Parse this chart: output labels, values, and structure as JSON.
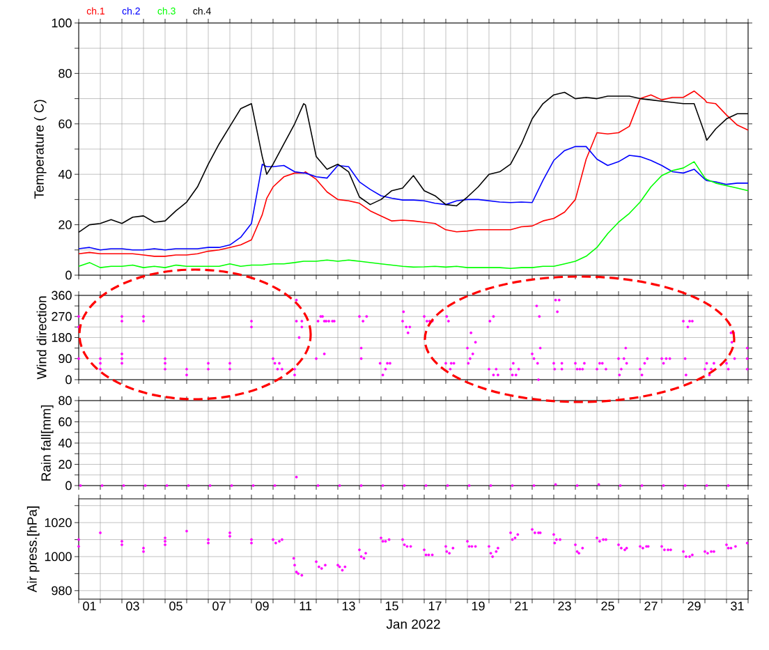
{
  "chart_data": [
    {
      "type": "line",
      "ylabel": "Temperature ( C)",
      "legend": "top left",
      "grid": true,
      "tick_labels": "y",
      "xlim": [
        "2022-01-01T00:00",
        "2022-02-01T00:00"
      ],
      "xticks": [
        {
          "value": "2022-01-01T00:00",
          "label": null
        },
        {
          "value": "2022-01-02T00:00",
          "label": null
        },
        {
          "value": "2022-01-03T00:00",
          "label": null
        },
        {
          "value": "2022-01-04T00:00",
          "label": null
        },
        {
          "value": "2022-01-05T00:00",
          "label": null
        },
        {
          "value": "2022-01-06T00:00",
          "label": null
        },
        {
          "value": "2022-01-07T00:00",
          "label": null
        },
        {
          "value": "2022-01-08T00:00",
          "label": null
        },
        {
          "value": "2022-01-09T00:00",
          "label": null
        },
        {
          "value": "2022-01-10T00:00",
          "label": null
        },
        {
          "value": "2022-01-11T00:00",
          "label": null
        },
        {
          "value": "2022-01-12T00:00",
          "label": null
        },
        {
          "value": "2022-01-13T00:00",
          "label": null
        },
        {
          "value": "2022-01-14T00:00",
          "label": null
        },
        {
          "value": "2022-01-15T00:00",
          "label": null
        },
        {
          "value": "2022-01-16T00:00",
          "label": null
        },
        {
          "value": "2022-01-17T00:00",
          "label": null
        },
        {
          "value": "2022-01-18T00:00",
          "label": null
        },
        {
          "value": "2022-01-19T00:00",
          "label": null
        },
        {
          "value": "2022-01-20T00:00",
          "label": null
        },
        {
          "value": "2022-01-21T00:00",
          "label": null
        },
        {
          "value": "2022-01-22T00:00",
          "label": null
        },
        {
          "value": "2022-01-23T00:00",
          "label": null
        },
        {
          "value": "2022-01-24T00:00",
          "label": null
        },
        {
          "value": "2022-01-25T00:00",
          "label": null
        },
        {
          "value": "2022-01-26T00:00",
          "label": null
        },
        {
          "value": "2022-01-27T00:00",
          "label": null
        },
        {
          "value": "2022-01-28T00:00",
          "label": null
        },
        {
          "value": "2022-01-29T00:00",
          "label": null
        },
        {
          "value": "2022-01-30T00:00",
          "label": null
        },
        {
          "value": "2022-01-31T00:00",
          "label": null
        },
        {
          "value": "2022-02-01T00:00",
          "label": null
        }
      ],
      "ylim": [
        0,
        100
      ],
      "yticks": [
        0,
        {
          "value": 10,
          "label": null
        },
        20,
        {
          "value": 30,
          "label": null
        },
        40,
        {
          "value": 50,
          "label": null
        },
        60,
        {
          "value": 70,
          "label": null
        },
        80,
        {
          "value": 90,
          "label": null
        },
        100
      ],
      "x": [
        "2022-01-01T00:00",
        "2022-01-01T12:00",
        "2022-01-02T00:00",
        "2022-01-02T12:00",
        "2022-01-03T00:00",
        "2022-01-03T12:00",
        "2022-01-04T00:00",
        "2022-01-04T12:00",
        "2022-01-05T00:00",
        "2022-01-05T12:00",
        "2022-01-06T00:00",
        "2022-01-06T12:00",
        "2022-01-07T00:00",
        "2022-01-07T12:00",
        "2022-01-08T00:00",
        "2022-01-08T12:00",
        "2022-01-09T00:00",
        "2022-01-09T12:00",
        "2022-01-09T17:00",
        "2022-01-10T00:00",
        "2022-01-10T12:00",
        "2022-01-11T00:00",
        "2022-01-11T10:00",
        "2022-01-11T12:00",
        "2022-01-12T00:00",
        "2022-01-12T12:00",
        "2022-01-13T00:00",
        "2022-01-13T12:00",
        "2022-01-14T00:00",
        "2022-01-14T12:00",
        "2022-01-15T00:00",
        "2022-01-15T12:00",
        "2022-01-16T00:00",
        "2022-01-16T12:00",
        "2022-01-17T00:00",
        "2022-01-17T12:00",
        "2022-01-18T00:00",
        "2022-01-18T12:00",
        "2022-01-19T00:00",
        "2022-01-19T12:00",
        "2022-01-20T00:00",
        "2022-01-20T12:00",
        "2022-01-21T00:00",
        "2022-01-21T12:00",
        "2022-01-22T00:00",
        "2022-01-22T12:00",
        "2022-01-23T00:00",
        "2022-01-23T12:00",
        "2022-01-24T00:00",
        "2022-01-24T12:00",
        "2022-01-25T00:00",
        "2022-01-25T12:00",
        "2022-01-26T00:00",
        "2022-01-26T12:00",
        "2022-01-27T00:00",
        "2022-01-27T12:00",
        "2022-01-28T00:00",
        "2022-01-28T12:00",
        "2022-01-29T00:00",
        "2022-01-29T12:00",
        "2022-01-30T00:00",
        "2022-01-30T02:00",
        "2022-01-30T12:00",
        "2022-01-31T00:00",
        "2022-01-31T12:00",
        "2022-02-01T00:00"
      ],
      "series": [
        {
          "name": "ch.1",
          "color": "#ff0000",
          "values": [
            8.5,
            9,
            8.5,
            8.5,
            8.5,
            8.5,
            8,
            7.5,
            7.5,
            8,
            8,
            8.5,
            9.5,
            10,
            11,
            12,
            14,
            24,
            30.5,
            35,
            39,
            40.5,
            40.5,
            41,
            38,
            33,
            30,
            29.5,
            28.5,
            25.5,
            23.5,
            21.5,
            21.8,
            21.5,
            21,
            20.5,
            18,
            17.2,
            17.5,
            18,
            18,
            18,
            18,
            19.2,
            19.5,
            21.5,
            22.5,
            25,
            30,
            46,
            56.5,
            56,
            56.5,
            59,
            70,
            71.5,
            69.5,
            70.5,
            70.5,
            73,
            69.5,
            68.5,
            68,
            63.5,
            59.5,
            57.5
          ]
        },
        {
          "name": "ch.2",
          "color": "#0000ff",
          "values": [
            10.5,
            11,
            10,
            10.5,
            10.5,
            10,
            10,
            10.5,
            10,
            10.5,
            10.5,
            10.5,
            11,
            11,
            12,
            15,
            20.5,
            44,
            43,
            43,
            43.5,
            41,
            40.5,
            40.5,
            39,
            38.5,
            43.5,
            43,
            37,
            34,
            31.5,
            30.5,
            29.8,
            29.8,
            29.5,
            28.5,
            28,
            29.5,
            30,
            30,
            29.5,
            29,
            28.8,
            29,
            28.8,
            37.6,
            45.5,
            49.4,
            51,
            51,
            46,
            43.5,
            45,
            47.5,
            47,
            45.5,
            43.5,
            41,
            40.5,
            42,
            38,
            37.5,
            37,
            36,
            36.5,
            36.5
          ]
        },
        {
          "name": "ch.3",
          "color": "#00ff00",
          "values": [
            3.5,
            5,
            3,
            3.5,
            3.5,
            4,
            3,
            3.5,
            3,
            4,
            3.5,
            3.5,
            3.5,
            3.5,
            4.5,
            3.5,
            4,
            4,
            4.2,
            4.5,
            4.5,
            5,
            5.5,
            5.5,
            5.5,
            6,
            5.5,
            6,
            5.5,
            5,
            4.5,
            4,
            3.5,
            3.2,
            3.3,
            3.5,
            3.2,
            3.5,
            3,
            3,
            3,
            3,
            2.7,
            3,
            3,
            3.5,
            3.5,
            4.5,
            5.5,
            7.5,
            11,
            16.5,
            21,
            24.5,
            29,
            35,
            39.5,
            41.5,
            42.5,
            45,
            38.5,
            38,
            36.5,
            35.5,
            34.5,
            33.5
          ]
        },
        {
          "name": "ch.4",
          "color": "#000000",
          "values": [
            17,
            20,
            20.5,
            22,
            20.5,
            23,
            23.5,
            21,
            21.5,
            25.5,
            29,
            35,
            44,
            52,
            59,
            66,
            68,
            47,
            40,
            44,
            52,
            60,
            68,
            67.5,
            47,
            42,
            44,
            41,
            31,
            28,
            30,
            33.5,
            34.5,
            39.5,
            33.5,
            31.5,
            28,
            27.5,
            31,
            35,
            40,
            41,
            44,
            52,
            62,
            68,
            71.5,
            72.5,
            70,
            70.5,
            70,
            71,
            71,
            71,
            70,
            69.5,
            69,
            68.5,
            68,
            68,
            56,
            53.5,
            58,
            62,
            64,
            64
          ]
        }
      ]
    },
    {
      "type": "scatter",
      "ylabel": "Wind direction",
      "grid": true,
      "tick_labels": "y",
      "marker": "circle",
      "xlim": [
        "2022-01-01T00:00",
        "2022-02-01T00:00"
      ],
      "xticks": [
        {
          "value": "2022-01-01T00:00",
          "label": null
        },
        {
          "value": "2022-01-02T00:00",
          "label": null
        },
        {
          "value": "2022-01-03T00:00",
          "label": null
        },
        {
          "value": "2022-01-04T00:00",
          "label": null
        },
        {
          "value": "2022-01-05T00:00",
          "label": null
        },
        {
          "value": "2022-01-06T00:00",
          "label": null
        },
        {
          "value": "2022-01-07T00:00",
          "label": null
        },
        {
          "value": "2022-01-08T00:00",
          "label": null
        },
        {
          "value": "2022-01-09T00:00",
          "label": null
        },
        {
          "value": "2022-01-10T00:00",
          "label": null
        },
        {
          "value": "2022-01-11T00:00",
          "label": null
        },
        {
          "value": "2022-01-12T00:00",
          "label": null
        },
        {
          "value": "2022-01-13T00:00",
          "label": null
        },
        {
          "value": "2022-01-14T00:00",
          "label": null
        },
        {
          "value": "2022-01-15T00:00",
          "label": null
        },
        {
          "value": "2022-01-16T00:00",
          "label": null
        },
        {
          "value": "2022-01-17T00:00",
          "label": null
        },
        {
          "value": "2022-01-18T00:00",
          "label": null
        },
        {
          "value": "2022-01-19T00:00",
          "label": null
        },
        {
          "value": "2022-01-20T00:00",
          "label": null
        },
        {
          "value": "2022-01-21T00:00",
          "label": null
        },
        {
          "value": "2022-01-22T00:00",
          "label": null
        },
        {
          "value": "2022-01-23T00:00",
          "label": null
        },
        {
          "value": "2022-01-24T00:00",
          "label": null
        },
        {
          "value": "2022-01-25T00:00",
          "label": null
        },
        {
          "value": "2022-01-26T00:00",
          "label": null
        },
        {
          "value": "2022-01-27T00:00",
          "label": null
        },
        {
          "value": "2022-01-28T00:00",
          "label": null
        },
        {
          "value": "2022-01-29T00:00",
          "label": null
        },
        {
          "value": "2022-01-30T00:00",
          "label": null
        },
        {
          "value": "2022-01-31T00:00",
          "label": null
        },
        {
          "value": "2022-02-01T00:00",
          "label": null
        }
      ],
      "ylim": [
        0,
        360
      ],
      "yticks": [
        0,
        {
          "value": 45,
          "label": null
        },
        90,
        {
          "value": 135,
          "label": null
        },
        180,
        {
          "value": 225,
          "label": null
        },
        270,
        {
          "value": 315,
          "label": null
        },
        360
      ],
      "series": [
        {
          "color": "#ff00ff",
          "x": [
            "2022-01-01T00:00",
            "2022-01-01T00:00",
            "2022-01-01T00:00",
            "2022-01-02T00:00",
            "2022-01-02T00:00",
            "2022-01-02T00:00",
            "2022-01-03T00:00",
            "2022-01-03T00:00",
            "2022-01-03T00:00",
            "2022-01-03T00:00",
            "2022-01-03T00:00",
            "2022-01-04T00:00",
            "2022-01-04T00:00",
            "2022-01-05T00:00",
            "2022-01-05T00:00",
            "2022-01-05T00:00",
            "2022-01-06T00:00",
            "2022-01-06T00:00",
            "2022-01-07T00:00",
            "2022-01-07T00:00",
            "2022-01-08T00:00",
            "2022-01-08T00:00",
            "2022-01-09T00:00",
            "2022-01-09T00:00",
            "2022-01-10T00:00",
            "2022-01-10T02:00",
            "2022-01-10T05:00",
            "2022-01-10T07:00",
            "2022-01-10T10:00",
            "2022-01-11T00:00",
            "2022-01-11T00:00",
            "2022-01-11T02:00",
            "2022-01-11T02:00",
            "2022-01-11T05:00",
            "2022-01-11T08:00",
            "2022-01-11T08:00",
            "2022-01-12T00:00",
            "2022-01-12T02:00",
            "2022-01-12T05:00",
            "2022-01-12T07:00",
            "2022-01-12T09:00",
            "2022-01-12T09:00",
            "2022-01-12T11:00",
            "2022-01-12T14:00",
            "2022-01-12T18:00",
            "2022-01-12T20:00",
            "2022-01-14T00:00",
            "2022-01-14T02:00",
            "2022-01-14T02:00",
            "2022-01-14T04:00",
            "2022-01-14T08:00",
            "2022-01-14T23:00",
            "2022-01-15T02:00",
            "2022-01-15T05:00",
            "2022-01-15T07:00",
            "2022-01-15T10:00",
            "2022-01-16T00:00",
            "2022-01-16T01:00",
            "2022-01-16T04:00",
            "2022-01-16T06:00",
            "2022-01-16T08:00",
            "2022-01-17T00:00",
            "2022-01-17T03:00",
            "2022-01-17T06:00",
            "2022-01-17T09:00",
            "2022-01-18T00:00",
            "2022-01-18T01:00",
            "2022-01-18T03:00",
            "2022-01-18T05:00",
            "2022-01-18T06:00",
            "2022-01-18T09:00",
            "2022-01-19T00:00",
            "2022-01-19T01:00",
            "2022-01-19T03:00",
            "2022-01-19T04:00",
            "2022-01-19T06:00",
            "2022-01-19T09:00",
            "2022-01-20T00:00",
            "2022-01-20T01:00",
            "2022-01-20T05:00",
            "2022-01-20T05:00",
            "2022-01-20T08:00",
            "2022-01-20T10:00",
            "2022-01-21T00:00",
            "2022-01-21T02:00",
            "2022-01-21T03:00",
            "2022-01-21T06:00",
            "2022-01-21T09:00",
            "2022-01-22T00:00",
            "2022-01-22T02:00",
            "2022-01-22T05:00",
            "2022-01-22T06:00",
            "2022-01-22T07:00",
            "2022-01-22T08:00",
            "2022-01-22T09:00",
            "2022-01-23T00:00",
            "2022-01-23T01:00",
            "2022-01-23T02:00",
            "2022-01-23T04:00",
            "2022-01-23T06:00",
            "2022-01-23T09:00",
            "2022-01-23T09:00",
            "2022-01-24T00:00",
            "2022-01-24T02:00",
            "2022-01-24T05:00",
            "2022-01-24T08:00",
            "2022-01-24T10:00",
            "2022-01-25T00:00",
            "2022-01-25T03:00",
            "2022-01-25T06:00",
            "2022-01-25T10:00",
            "2022-01-26T00:00",
            "2022-01-26T01:00",
            "2022-01-26T03:00",
            "2022-01-26T06:00",
            "2022-01-26T08:00",
            "2022-01-26T09:00",
            "2022-01-27T00:00",
            "2022-01-27T02:00",
            "2022-01-27T05:00",
            "2022-01-27T08:00",
            "2022-01-28T00:00",
            "2022-01-28T02:00",
            "2022-01-28T05:00",
            "2022-01-28T09:00",
            "2022-01-29T00:00",
            "2022-01-29T02:00",
            "2022-01-29T03:00",
            "2022-01-29T05:00",
            "2022-01-29T07:00",
            "2022-01-29T10:00",
            "2022-01-30T00:00",
            "2022-01-30T02:00",
            "2022-01-30T05:00",
            "2022-01-30T07:00",
            "2022-01-30T10:00",
            "2022-01-31T00:00",
            "2022-01-31T02:00",
            "2022-01-31T05:00",
            "2022-01-31T06:00",
            "2022-01-31T08:00",
            "2022-01-31T09:00",
            "2022-01-31T23:00",
            "2022-01-31T23:00",
            "2022-01-31T23:00"
          ],
          "values": [
            270,
            225,
            90,
            90,
            70,
            45,
            270,
            250,
            110,
            90,
            70,
            270,
            250,
            90,
            70,
            45,
            45,
            20,
            70,
            45,
            70,
            45,
            250,
            225,
            90,
            70,
            45,
            70,
            45,
            45,
            20,
            340,
            250,
            180,
            250,
            225,
            90,
            250,
            270,
            270,
            110,
            250,
            250,
            250,
            250,
            250,
            270,
            135,
            90,
            250,
            270,
            70,
            20,
            45,
            70,
            70,
            250,
            290,
            225,
            200,
            225,
            270,
            250,
            250,
            250,
            70,
            270,
            250,
            45,
            70,
            70,
            135,
            70,
            90,
            200,
            110,
            160,
            45,
            250,
            270,
            20,
            45,
            20,
            45,
            20,
            70,
            20,
            45,
            110,
            90,
            315,
            70,
            0,
            270,
            135,
            70,
            45,
            340,
            290,
            340,
            70,
            45,
            70,
            45,
            45,
            45,
            70,
            45,
            70,
            70,
            45,
            90,
            20,
            45,
            90,
            135,
            70,
            45,
            20,
            70,
            90,
            90,
            70,
            90,
            90,
            250,
            90,
            20,
            225,
            250,
            250,
            45,
            70,
            20,
            45,
            70,
            70,
            45,
            200,
            160,
            200,
            90,
            135,
            90,
            45
          ]
        }
      ]
    },
    {
      "type": "scatter",
      "ylabel": "Rain fall[mm]",
      "grid": true,
      "tick_labels": "y",
      "marker": "circle",
      "xlim": [
        "2022-01-01T00:00",
        "2022-02-01T00:00"
      ],
      "xticks": [
        {
          "value": "2022-01-01T00:00",
          "label": null
        },
        {
          "value": "2022-01-02T00:00",
          "label": null
        },
        {
          "value": "2022-01-03T00:00",
          "label": null
        },
        {
          "value": "2022-01-04T00:00",
          "label": null
        },
        {
          "value": "2022-01-05T00:00",
          "label": null
        },
        {
          "value": "2022-01-06T00:00",
          "label": null
        },
        {
          "value": "2022-01-07T00:00",
          "label": null
        },
        {
          "value": "2022-01-08T00:00",
          "label": null
        },
        {
          "value": "2022-01-09T00:00",
          "label": null
        },
        {
          "value": "2022-01-10T00:00",
          "label": null
        },
        {
          "value": "2022-01-11T00:00",
          "label": null
        },
        {
          "value": "2022-01-12T00:00",
          "label": null
        },
        {
          "value": "2022-01-13T00:00",
          "label": null
        },
        {
          "value": "2022-01-14T00:00",
          "label": null
        },
        {
          "value": "2022-01-15T00:00",
          "label": null
        },
        {
          "value": "2022-01-16T00:00",
          "label": null
        },
        {
          "value": "2022-01-17T00:00",
          "label": null
        },
        {
          "value": "2022-01-18T00:00",
          "label": null
        },
        {
          "value": "2022-01-19T00:00",
          "label": null
        },
        {
          "value": "2022-01-20T00:00",
          "label": null
        },
        {
          "value": "2022-01-21T00:00",
          "label": null
        },
        {
          "value": "2022-01-22T00:00",
          "label": null
        },
        {
          "value": "2022-01-23T00:00",
          "label": null
        },
        {
          "value": "2022-01-24T00:00",
          "label": null
        },
        {
          "value": "2022-01-25T00:00",
          "label": null
        },
        {
          "value": "2022-01-26T00:00",
          "label": null
        },
        {
          "value": "2022-01-27T00:00",
          "label": null
        },
        {
          "value": "2022-01-28T00:00",
          "label": null
        },
        {
          "value": "2022-01-29T00:00",
          "label": null
        },
        {
          "value": "2022-01-30T00:00",
          "label": null
        },
        {
          "value": "2022-01-31T00:00",
          "label": null
        },
        {
          "value": "2022-02-01T00:00",
          "label": null
        }
      ],
      "ylim": [
        0,
        80
      ],
      "yticks": [
        0,
        {
          "value": 10,
          "label": null
        },
        20,
        {
          "value": 30,
          "label": null
        },
        40,
        {
          "value": 50,
          "label": null
        },
        60,
        {
          "value": 70,
          "label": null
        },
        80
      ],
      "series": [
        {
          "color": "#ff00ff",
          "x": [
            "2022-01-01T02:00",
            "2022-01-02T02:00",
            "2022-01-03T02:00",
            "2022-01-04T02:00",
            "2022-01-05T02:00",
            "2022-01-06T02:00",
            "2022-01-07T02:00",
            "2022-01-08T02:00",
            "2022-01-09T02:00",
            "2022-01-10T02:00",
            "2022-01-11T02:00",
            "2022-01-12T02:00",
            "2022-01-13T02:00",
            "2022-01-14T02:00",
            "2022-01-15T02:00",
            "2022-01-16T02:00",
            "2022-01-17T02:00",
            "2022-01-18T02:00",
            "2022-01-19T02:00",
            "2022-01-20T02:00",
            "2022-01-21T02:00",
            "2022-01-22T02:00",
            "2022-01-23T02:00",
            "2022-01-24T02:00",
            "2022-01-25T02:00",
            "2022-01-26T02:00",
            "2022-01-27T02:00",
            "2022-01-28T02:00",
            "2022-01-29T02:00",
            "2022-01-30T02:00",
            "2022-01-31T02:00"
          ],
          "values": [
            0,
            0,
            0,
            0,
            0,
            0,
            0,
            0,
            0,
            0,
            8,
            0,
            0,
            0,
            0,
            0,
            0,
            0,
            0,
            0,
            0,
            0,
            1,
            0,
            1,
            0,
            0,
            0,
            0,
            0,
            0
          ]
        }
      ]
    },
    {
      "type": "scatter",
      "ylabel": "Air press.[hPa]",
      "xlabel": "Jan 2022",
      "grid": true,
      "marker": "circle",
      "xlim": [
        "2022-01-01T00:00",
        "2022-02-01T00:00"
      ],
      "xticks": [
        {
          "value": "2022-01-01T00:00",
          "label": null
        },
        {
          "value": "2022-01-02T00:00",
          "label": null
        },
        {
          "value": "2022-01-03T00:00",
          "label": null
        },
        {
          "value": "2022-01-04T00:00",
          "label": null
        },
        {
          "value": "2022-01-05T00:00",
          "label": null
        },
        {
          "value": "2022-01-06T00:00",
          "label": null
        },
        {
          "value": "2022-01-07T00:00",
          "label": null
        },
        {
          "value": "2022-01-08T00:00",
          "label": null
        },
        {
          "value": "2022-01-09T00:00",
          "label": null
        },
        {
          "value": "2022-01-10T00:00",
          "label": null
        },
        {
          "value": "2022-01-11T00:00",
          "label": null
        },
        {
          "value": "2022-01-12T00:00",
          "label": null
        },
        {
          "value": "2022-01-13T00:00",
          "label": null
        },
        {
          "value": "2022-01-14T00:00",
          "label": null
        },
        {
          "value": "2022-01-15T00:00",
          "label": null
        },
        {
          "value": "2022-01-16T00:00",
          "label": null
        },
        {
          "value": "2022-01-17T00:00",
          "label": null
        },
        {
          "value": "2022-01-18T00:00",
          "label": null
        },
        {
          "value": "2022-01-19T00:00",
          "label": null
        },
        {
          "value": "2022-01-20T00:00",
          "label": null
        },
        {
          "value": "2022-01-21T00:00",
          "label": null
        },
        {
          "value": "2022-01-22T00:00",
          "label": null
        },
        {
          "value": "2022-01-23T00:00",
          "label": null
        },
        {
          "value": "2022-01-24T00:00",
          "label": null
        },
        {
          "value": "2022-01-25T00:00",
          "label": null
        },
        {
          "value": "2022-01-26T00:00",
          "label": null
        },
        {
          "value": "2022-01-27T00:00",
          "label": null
        },
        {
          "value": "2022-01-28T00:00",
          "label": null
        },
        {
          "value": "2022-01-29T00:00",
          "label": null
        },
        {
          "value": "2022-01-30T00:00",
          "label": null
        },
        {
          "value": "2022-01-31T00:00",
          "label": null
        },
        {
          "value": "2022-02-01T00:00",
          "label": null
        },
        {
          "value": "2022-01-01T12:00",
          "label": "01"
        },
        {
          "value": "2022-01-03T12:00",
          "label": "03"
        },
        {
          "value": "2022-01-05T12:00",
          "label": "05"
        },
        {
          "value": "2022-01-07T12:00",
          "label": "07"
        },
        {
          "value": "2022-01-09T12:00",
          "label": "09"
        },
        {
          "value": "2022-01-11T12:00",
          "label": "11"
        },
        {
          "value": "2022-01-13T12:00",
          "label": "13"
        },
        {
          "value": "2022-01-15T12:00",
          "label": "15"
        },
        {
          "value": "2022-01-17T12:00",
          "label": "17"
        },
        {
          "value": "2022-01-19T12:00",
          "label": "19"
        },
        {
          "value": "2022-01-21T12:00",
          "label": "21"
        },
        {
          "value": "2022-01-23T12:00",
          "label": "23"
        },
        {
          "value": "2022-01-25T12:00",
          "label": "25"
        },
        {
          "value": "2022-01-27T12:00",
          "label": "27"
        },
        {
          "value": "2022-01-29T12:00",
          "label": "29"
        },
        {
          "value": "2022-01-31T12:00",
          "label": "31"
        }
      ],
      "ylim": [
        975,
        1034
      ],
      "yticks": [
        980,
        {
          "value": 990,
          "label": null
        },
        1000,
        {
          "value": 1010,
          "label": null
        },
        1020,
        {
          "value": 1030,
          "label": null
        }
      ],
      "series": [
        {
          "color": "#ff00ff",
          "x": [
            "2022-01-01T00:00",
            "2022-01-01T00:00",
            "2022-01-02T00:00",
            "2022-01-03T00:00",
            "2022-01-03T00:00",
            "2022-01-04T00:00",
            "2022-01-04T00:00",
            "2022-01-05T00:00",
            "2022-01-05T00:00",
            "2022-01-05T00:00",
            "2022-01-06T00:00",
            "2022-01-07T00:00",
            "2022-01-07T00:00",
            "2022-01-08T00:00",
            "2022-01-08T00:00",
            "2022-01-09T00:00",
            "2022-01-09T00:00",
            "2022-01-10T00:00",
            "2022-01-10T03:00",
            "2022-01-10T07:00",
            "2022-01-10T10:00",
            "2022-01-10T23:00",
            "2022-01-11T00:00",
            "2022-01-11T02:00",
            "2022-01-11T04:00",
            "2022-01-11T08:00",
            "2022-01-12T00:00",
            "2022-01-12T03:00",
            "2022-01-12T06:00",
            "2022-01-12T10:00",
            "2022-01-13T00:00",
            "2022-01-13T02:00",
            "2022-01-13T05:00",
            "2022-01-13T08:00",
            "2022-01-14T00:00",
            "2022-01-14T02:00",
            "2022-01-14T05:00",
            "2022-01-14T07:00",
            "2022-01-15T00:00",
            "2022-01-15T02:00",
            "2022-01-15T05:00",
            "2022-01-15T09:00",
            "2022-01-16T00:00",
            "2022-01-16T02:00",
            "2022-01-16T05:00",
            "2022-01-16T09:00",
            "2022-01-17T00:00",
            "2022-01-17T02:00",
            "2022-01-17T05:00",
            "2022-01-17T09:00",
            "2022-01-18T00:00",
            "2022-01-18T01:00",
            "2022-01-18T04:00",
            "2022-01-18T08:00",
            "2022-01-19T00:00",
            "2022-01-19T02:00",
            "2022-01-19T05:00",
            "2022-01-19T09:00",
            "2022-01-20T00:00",
            "2022-01-20T02:00",
            "2022-01-20T04:00",
            "2022-01-20T08:00",
            "2022-01-20T10:00",
            "2022-01-21T00:00",
            "2022-01-21T02:00",
            "2022-01-21T05:00",
            "2022-01-21T08:00",
            "2022-01-22T00:00",
            "2022-01-22T03:00",
            "2022-01-22T07:00",
            "2022-01-22T09:00",
            "2022-01-23T00:00",
            "2022-01-23T01:00",
            "2022-01-23T03:00",
            "2022-01-23T07:00",
            "2022-01-24T00:00",
            "2022-01-24T02:00",
            "2022-01-24T04:00",
            "2022-01-24T08:00",
            "2022-01-25T00:00",
            "2022-01-25T03:00",
            "2022-01-25T07:00",
            "2022-01-25T10:00",
            "2022-01-26T00:00",
            "2022-01-26T03:00",
            "2022-01-26T07:00",
            "2022-01-26T09:00",
            "2022-01-27T00:00",
            "2022-01-27T03:00",
            "2022-01-27T07:00",
            "2022-01-27T09:00",
            "2022-01-28T00:00",
            "2022-01-28T03:00",
            "2022-01-28T07:00",
            "2022-01-28T10:00",
            "2022-01-29T00:00",
            "2022-01-29T03:00",
            "2022-01-29T07:00",
            "2022-01-29T10:00",
            "2022-01-30T00:00",
            "2022-01-30T03:00",
            "2022-01-30T07:00",
            "2022-01-30T10:00",
            "2022-01-31T00:00",
            "2022-01-31T02:00",
            "2022-01-31T05:00",
            "2022-01-31T10:00",
            "2022-01-31T23:00"
          ],
          "values": [
            1010,
            1006,
            1014,
            1009,
            1007,
            1005,
            1003,
            1011,
            1009,
            1007,
            1015,
            1010,
            1008,
            1014,
            1012,
            1010,
            1008,
            1010,
            1008,
            1009,
            1010,
            999,
            995,
            991,
            990,
            989,
            997,
            994,
            993,
            995,
            995,
            994,
            992,
            994,
            1004,
            1000,
            999,
            1002,
            1011,
            1009,
            1009,
            1010,
            1010,
            1007,
            1006,
            1006,
            1004,
            1001,
            1001,
            1001,
            1006,
            1003,
            1002,
            1005,
            1009,
            1006,
            1006,
            1006,
            1006,
            1002,
            1000,
            1003,
            1005,
            1014,
            1010,
            1011,
            1013,
            1016,
            1014,
            1014,
            1014,
            1013,
            1008,
            1010,
            1010,
            1007,
            1003,
            1002,
            1005,
            1011,
            1009,
            1010,
            1010,
            1007,
            1005,
            1004,
            1005,
            1006,
            1005,
            1006,
            1006,
            1006,
            1004,
            1004,
            1004,
            1003,
            1000,
            1000,
            1001,
            1003,
            1002,
            1003,
            1003,
            1007,
            1005,
            1005,
            1006,
            1008
          ]
        }
      ]
    }
  ]
}
